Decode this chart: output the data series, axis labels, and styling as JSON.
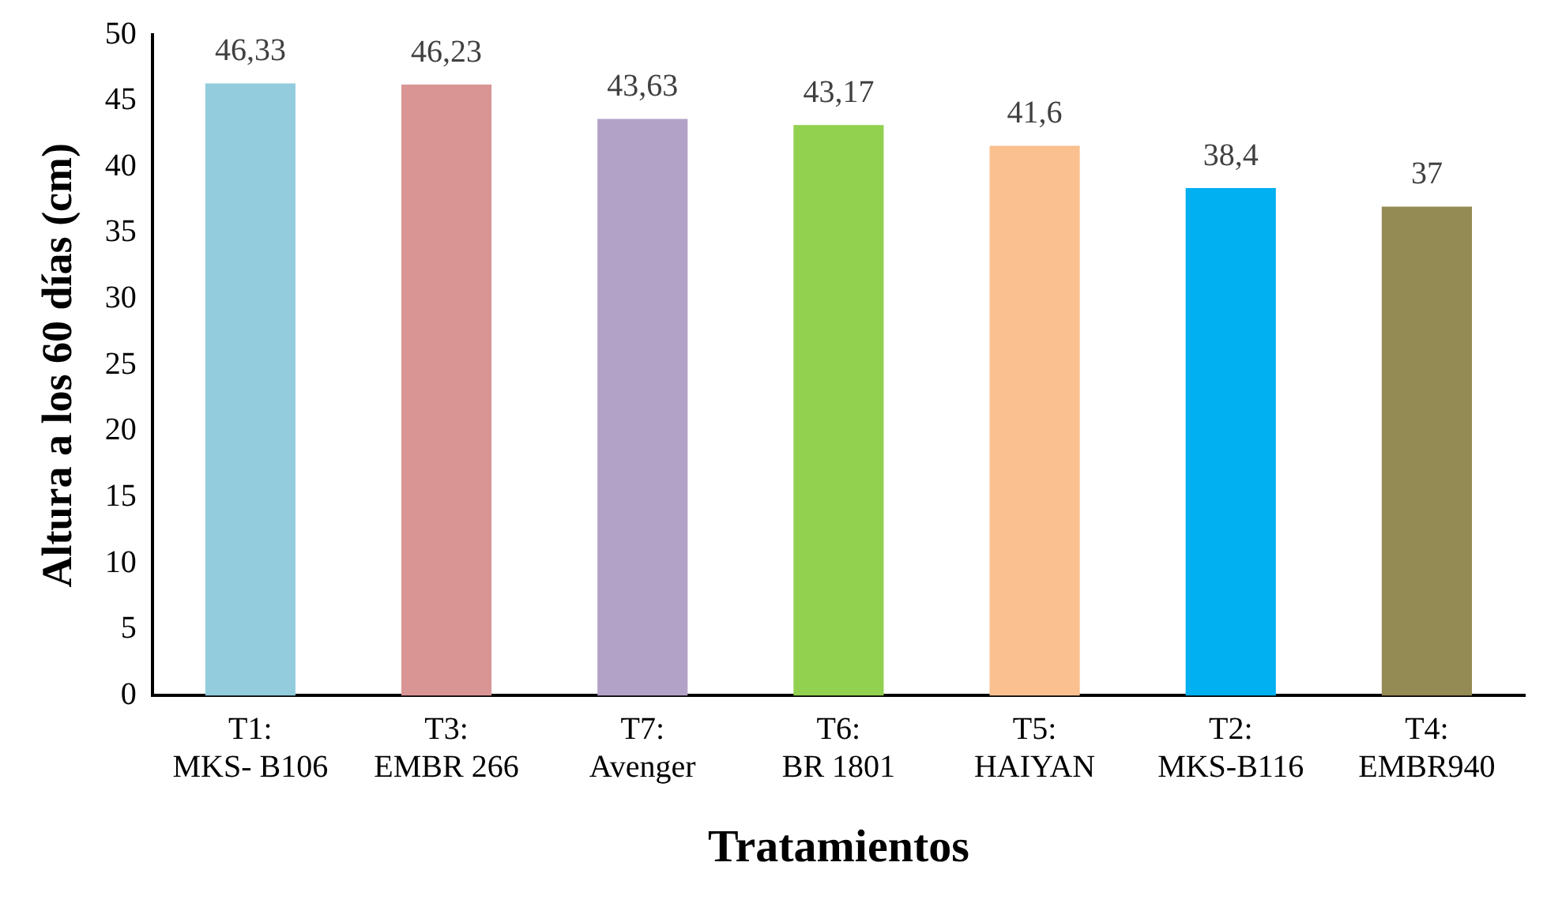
{
  "chart_data": {
    "type": "bar",
    "xlabel": "Tratamientos",
    "ylabel": "Altura a los 60 días (cm)",
    "categories": [
      "T1:\nMKS- B106",
      "T3:\nEMBR 266",
      "T7:\nAvenger",
      "T6:\nBR 1801",
      "T5:\nHAIYAN",
      "T2:\nMKS-B116",
      "T4:\nEMBR940"
    ],
    "values": [
      46.33,
      46.23,
      43.63,
      43.17,
      41.6,
      38.4,
      37
    ],
    "colors": [
      "#93cddd",
      "#d99594",
      "#b2a2c7",
      "#92d050",
      "#fac090",
      "#00b0f0",
      "#948a54"
    ],
    "value_labels": [
      "46,33",
      "46,23",
      "43,63",
      "43,17",
      "41,6",
      "38,4",
      "37"
    ],
    "ylim": [
      0,
      50
    ],
    "yticks": [
      0,
      5,
      10,
      15,
      20,
      25,
      30,
      35,
      40,
      45,
      50
    ],
    "grid": false,
    "legend": false
  }
}
